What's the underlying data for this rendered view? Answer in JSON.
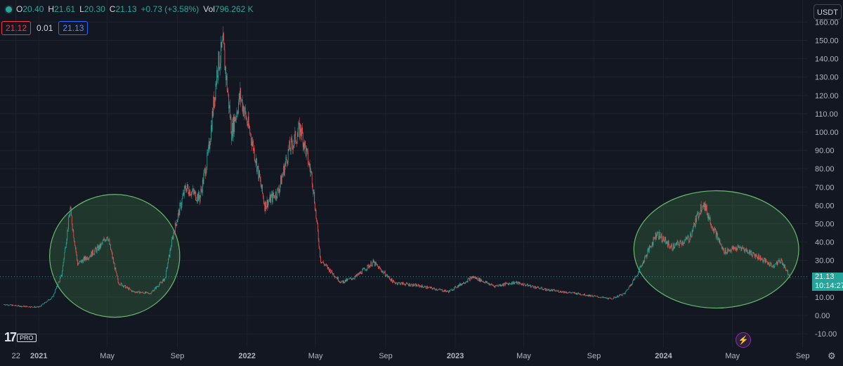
{
  "ohlc": {
    "open_label": "O",
    "open": "20.40",
    "high_label": "H",
    "high": "21.61",
    "low_label": "L",
    "low": "20.30",
    "close_label": "C",
    "close": "21.13",
    "change": "+0.73 (+3.58%)",
    "vol_label": "Vol",
    "vol": "796.262 K"
  },
  "toolbar_row": {
    "bid": "21.12",
    "spread": "0.01",
    "ask": "21.13"
  },
  "currency": "USDT",
  "last_price": {
    "price": "21.13",
    "countdown": "10:14:27"
  },
  "logo_text": "PRO",
  "colors": {
    "background": "#131722",
    "up": "#26a69a",
    "down": "#ef5350",
    "grid": "#1e222d",
    "ellipse_fill": "#4caf50",
    "ellipse_stroke": "#66bb6a",
    "price_line": "#26a69a"
  },
  "icons": [
    "tradingview-logo-icon",
    "lightning-icon",
    "gear-icon",
    "chevron-down-icon"
  ],
  "chart_data": {
    "type": "candlestick",
    "ylim": [
      -10,
      160
    ],
    "y_ticks": [
      "-10.00",
      "0.00",
      "10.00",
      "20.00",
      "30.00",
      "40.00",
      "50.00",
      "60.00",
      "70.00",
      "80.00",
      "90.00",
      "100.00",
      "110.00",
      "120.00",
      "130.00",
      "140.00",
      "150.00",
      "160.00"
    ],
    "x_ticks": [
      {
        "label": "22",
        "date": "2020-11-22"
      },
      {
        "label": "2021",
        "date": "2021-01-01"
      },
      {
        "label": "May",
        "date": "2021-05-01"
      },
      {
        "label": "Sep",
        "date": "2021-09-01"
      },
      {
        "label": "2022",
        "date": "2022-01-01"
      },
      {
        "label": "May",
        "date": "2022-05-01"
      },
      {
        "label": "Sep",
        "date": "2022-09-01"
      },
      {
        "label": "2023",
        "date": "2023-01-01"
      },
      {
        "label": "May",
        "date": "2023-05-01"
      },
      {
        "label": "Sep",
        "date": "2023-09-01"
      },
      {
        "label": "2024",
        "date": "2024-01-01"
      },
      {
        "label": "May",
        "date": "2024-05-01"
      },
      {
        "label": "Sep",
        "date": "2024-09-01"
      }
    ],
    "x_range": [
      "2020-10-25",
      "2024-09-10"
    ],
    "series": [
      {
        "date": "2020-11-01",
        "close": 6
      },
      {
        "date": "2020-12-01",
        "close": 5
      },
      {
        "date": "2021-01-01",
        "close": 4.5
      },
      {
        "date": "2021-01-25",
        "close": 10
      },
      {
        "date": "2021-02-10",
        "close": 22
      },
      {
        "date": "2021-02-25",
        "close": 58
      },
      {
        "date": "2021-03-10",
        "close": 28
      },
      {
        "date": "2021-04-01",
        "close": 33
      },
      {
        "date": "2021-04-20",
        "close": 38
      },
      {
        "date": "2021-05-01",
        "close": 44
      },
      {
        "date": "2021-05-20",
        "close": 18
      },
      {
        "date": "2021-06-15",
        "close": 13
      },
      {
        "date": "2021-07-15",
        "close": 12
      },
      {
        "date": "2021-08-10",
        "close": 20
      },
      {
        "date": "2021-08-25",
        "close": 45
      },
      {
        "date": "2021-09-15",
        "close": 70
      },
      {
        "date": "2021-10-10",
        "close": 64
      },
      {
        "date": "2021-10-25",
        "close": 88
      },
      {
        "date": "2021-11-10",
        "close": 135
      },
      {
        "date": "2021-11-20",
        "close": 147
      },
      {
        "date": "2021-12-05",
        "close": 100
      },
      {
        "date": "2021-12-20",
        "close": 120
      },
      {
        "date": "2022-01-10",
        "close": 95
      },
      {
        "date": "2022-02-01",
        "close": 60
      },
      {
        "date": "2022-02-25",
        "close": 68
      },
      {
        "date": "2022-03-15",
        "close": 90
      },
      {
        "date": "2022-04-05",
        "close": 102
      },
      {
        "date": "2022-04-25",
        "close": 75
      },
      {
        "date": "2022-05-10",
        "close": 30
      },
      {
        "date": "2022-06-15",
        "close": 18
      },
      {
        "date": "2022-07-10",
        "close": 21
      },
      {
        "date": "2022-08-10",
        "close": 29
      },
      {
        "date": "2022-09-15",
        "close": 18
      },
      {
        "date": "2022-11-01",
        "close": 16
      },
      {
        "date": "2022-12-20",
        "close": 13
      },
      {
        "date": "2023-02-01",
        "close": 21
      },
      {
        "date": "2023-03-10",
        "close": 16
      },
      {
        "date": "2023-04-15",
        "close": 18
      },
      {
        "date": "2023-06-10",
        "close": 14
      },
      {
        "date": "2023-08-01",
        "close": 12
      },
      {
        "date": "2023-10-01",
        "close": 9
      },
      {
        "date": "2023-10-25",
        "close": 12
      },
      {
        "date": "2023-11-15",
        "close": 22
      },
      {
        "date": "2023-12-05",
        "close": 35
      },
      {
        "date": "2023-12-20",
        "close": 45
      },
      {
        "date": "2024-01-15",
        "close": 37
      },
      {
        "date": "2024-02-15",
        "close": 42
      },
      {
        "date": "2024-03-10",
        "close": 62
      },
      {
        "date": "2024-03-25",
        "close": 50
      },
      {
        "date": "2024-04-15",
        "close": 35
      },
      {
        "date": "2024-05-15",
        "close": 37
      },
      {
        "date": "2024-06-15",
        "close": 32
      },
      {
        "date": "2024-07-10",
        "close": 27
      },
      {
        "date": "2024-07-25",
        "close": 30
      },
      {
        "date": "2024-08-10",
        "close": 21
      }
    ],
    "annotations": [
      {
        "type": "ellipse",
        "label": "",
        "date_range": [
          "2021-01-20",
          "2021-09-05"
        ],
        "price_range": [
          -1,
          66
        ]
      },
      {
        "type": "ellipse",
        "label": "",
        "date_range": [
          "2023-11-10",
          "2024-08-25"
        ],
        "price_range": [
          4,
          68
        ]
      }
    ],
    "current_price_line": 21.13
  }
}
